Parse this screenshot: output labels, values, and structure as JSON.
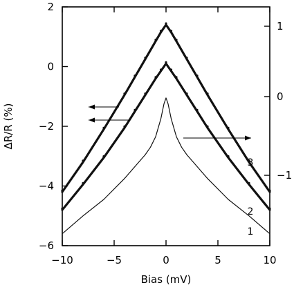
{
  "chart_data": {
    "type": "line",
    "xlabel": "Bias (mV)",
    "ylabel": "ΔR/R (%)",
    "xlim": [
      -10,
      10
    ],
    "ylim": [
      -6,
      2
    ],
    "xticks": [
      -10,
      -5,
      0,
      5,
      10
    ],
    "xtick_labels": [
      "−10",
      "−5",
      "0",
      "5",
      "10"
    ],
    "yticks": [
      -6,
      -4,
      -2,
      0,
      2
    ],
    "ytick_labels": [
      "−6",
      "−4",
      "−2",
      "0",
      "2"
    ],
    "right_tick_labels": [
      "1",
      "0",
      "−1"
    ],
    "grid": false,
    "series": [
      {
        "name": "1",
        "style": "thin-line",
        "x": [
          -10,
          -8,
          -6,
          -4,
          -3,
          -2,
          -1.5,
          -1,
          -0.5,
          -0.2,
          0,
          0.2,
          0.5,
          1,
          1.5,
          2,
          3,
          4,
          6,
          8,
          10
        ],
        "y": [
          -5.6,
          -5.0,
          -4.45,
          -3.75,
          -3.35,
          -2.95,
          -2.7,
          -2.35,
          -1.75,
          -1.25,
          -1.05,
          -1.25,
          -1.75,
          -2.35,
          -2.7,
          -2.95,
          -3.35,
          -3.75,
          -4.45,
          -5.0,
          -5.6
        ]
      },
      {
        "name": "2",
        "style": "thick-dotted",
        "x": [
          -10,
          -8,
          -6,
          -4,
          -3,
          -2,
          -1,
          -0.5,
          0,
          0.5,
          1,
          2,
          3,
          4,
          6,
          8,
          10
        ],
        "y": [
          -4.8,
          -3.95,
          -3.05,
          -2.05,
          -1.5,
          -0.95,
          -0.4,
          -0.15,
          0.1,
          -0.15,
          -0.4,
          -0.95,
          -1.5,
          -2.05,
          -3.05,
          -3.95,
          -4.8
        ]
      },
      {
        "name": "3",
        "style": "thick-dotted",
        "x": [
          -10,
          -8,
          -6,
          -4,
          -3,
          -2,
          -1,
          -0.5,
          0,
          0.5,
          1,
          2,
          3,
          4,
          6,
          8,
          10
        ],
        "y": [
          -4.2,
          -3.2,
          -2.1,
          -0.95,
          -0.35,
          0.25,
          0.85,
          1.15,
          1.4,
          1.15,
          0.85,
          0.25,
          -0.35,
          -0.95,
          -2.1,
          -3.2,
          -4.2
        ]
      }
    ],
    "annotations": {
      "arrows_left_count": 2,
      "arrows_right_count": 1
    }
  }
}
